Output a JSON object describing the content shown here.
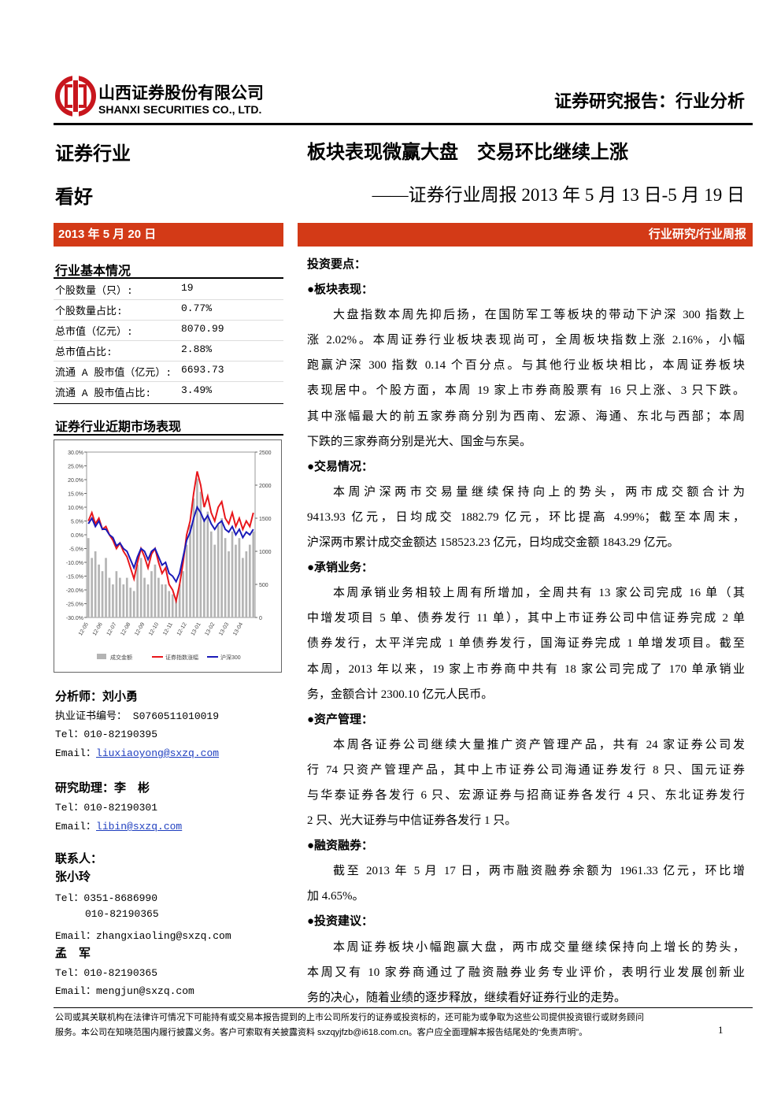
{
  "header": {
    "company_cn": "山西证券股份有限公司",
    "company_en": "SHANXI SECURITIES CO., LTD.",
    "report_type": "证券研究报告：行业分析"
  },
  "sidebar": {
    "industry": "证券行业",
    "rating": "看好",
    "date": "2013 年 5 月 20 日",
    "basics": {
      "title": "行业基本情况",
      "rows": [
        [
          "个股数量（只）:",
          "19"
        ],
        [
          "个股数量占比:",
          "0.77%"
        ],
        [
          "总市值（亿元）:",
          "8070.99"
        ],
        [
          "总市值占比:",
          "2.88%"
        ],
        [
          "流通 A 股市值（亿元）:",
          "6693.73"
        ],
        [
          "流通 A 股市值占比:",
          "3.49%"
        ]
      ]
    },
    "analyst": {
      "label": "分析师：刘小勇",
      "cert": "执业证书编号： S0760511010019",
      "tel": "Tel：010-82190395",
      "email_label": "Email：",
      "email": "liuxiaoyong@sxzq.com"
    },
    "assistant": {
      "label": "研究助理：李　彬",
      "tel": "Tel：010-82190301",
      "email_label": "Email：",
      "email": "libin@sxzq.com"
    },
    "contacts": {
      "label": "联系人：",
      "people": [
        {
          "name": "张小玲",
          "tel": "Tel：0351-8686990",
          "tel2": "010-82190365",
          "email": "Email：zhangxiaoling@sxzq.com"
        },
        {
          "name": "孟　军",
          "tel": "Tel：010-82190365",
          "email": "Email：mengjun@sxzq.com"
        }
      ]
    }
  },
  "chart_data": {
    "type": "combo",
    "title": "证券行业近期市场表现",
    "categories": [
      "12-05",
      null,
      null,
      null,
      "12-06",
      null,
      null,
      null,
      "12-07",
      null,
      null,
      null,
      "12-08",
      null,
      null,
      null,
      "12-09",
      null,
      null,
      null,
      "12-10",
      null,
      null,
      null,
      "12-11",
      null,
      null,
      null,
      "12-12",
      null,
      null,
      null,
      "13-01",
      null,
      null,
      null,
      "13-02",
      null,
      null,
      null,
      "13-03",
      null,
      null,
      null,
      "13-04",
      null,
      null,
      null
    ],
    "series": [
      {
        "name": "成交金额",
        "type": "bar",
        "axis": "y2",
        "color": "#b4b4b4",
        "values": [
          1200,
          900,
          1000,
          800,
          700,
          900,
          600,
          500,
          700,
          600,
          500,
          600,
          450,
          400,
          800,
          900,
          600,
          500,
          700,
          800,
          600,
          500,
          500,
          400,
          350,
          300,
          500,
          700,
          1100,
          1400,
          1800,
          2100,
          1900,
          1500,
          1600,
          1300,
          1100,
          1400,
          1500,
          1200,
          1000,
          1300,
          1100,
          1200,
          900,
          1000,
          1100,
          1300
        ]
      },
      {
        "name": "证券指数涨幅",
        "type": "line",
        "color": "#e8161b",
        "values": [
          5,
          8,
          4,
          6,
          2,
          3,
          0,
          -2,
          -5,
          -3,
          -6,
          -8,
          -12,
          -16,
          -10,
          -5,
          -8,
          -12,
          -7,
          -5,
          -10,
          -14,
          -12,
          -18,
          -20,
          -24,
          -18,
          -10,
          0,
          5,
          15,
          23,
          18,
          10,
          14,
          8,
          5,
          10,
          12,
          6,
          4,
          8,
          3,
          6,
          2,
          5,
          3,
          8
        ]
      },
      {
        "name": "沪深300",
        "type": "line",
        "color": "#1a1ab8",
        "values": [
          4,
          6,
          3,
          5,
          2,
          2,
          0,
          -1,
          -4,
          -3,
          -5,
          -6,
          -9,
          -12,
          -8,
          -5,
          -6,
          -9,
          -6,
          -5,
          -8,
          -11,
          -10,
          -14,
          -15,
          -17,
          -14,
          -8,
          -2,
          1,
          6,
          10,
          8,
          5,
          7,
          4,
          2,
          4,
          5,
          2,
          1,
          3,
          0,
          2,
          -1,
          1,
          0,
          2
        ]
      }
    ],
    "ylim": [
      -30,
      30
    ],
    "yticks": [
      {
        "value": 30,
        "label": "30.0%"
      },
      {
        "value": 25,
        "label": "25.0%"
      },
      {
        "value": 20,
        "label": "20.0%"
      },
      {
        "value": 15,
        "label": "15.0%"
      },
      {
        "value": 10,
        "label": "10.0%"
      },
      {
        "value": 5,
        "label": "5.0%"
      },
      {
        "value": 0,
        "label": "0.0%"
      },
      {
        "value": -5,
        "label": "-5.0%"
      },
      {
        "value": -10,
        "label": "-10.0%"
      },
      {
        "value": -15,
        "label": "-15.0%"
      },
      {
        "value": -20,
        "label": "-20.0%"
      },
      {
        "value": -25,
        "label": "-25.0%"
      },
      {
        "value": -30,
        "label": "-30.0%"
      }
    ],
    "y2lim": [
      0,
      2500
    ],
    "y2ticks": [
      0,
      500,
      1000,
      1500,
      2000,
      2500
    ]
  },
  "main": {
    "title": "板块表现微赢大盘　交易环比继续上涨",
    "subtitle": "——证券行业周报 2013 年 5 月 13 日-5 月 19 日",
    "category": "行业研究/行业周报",
    "key_points": "投资要点：",
    "sections": [
      {
        "heading": "●板块表现：",
        "lines": [
          "大盘指数本周先抑后扬，在国防军工等板块的带动下沪深 300 指数上",
          "涨 2.02%。本周证券行业板块表现尚可，全周板块指数上涨 2.16%，小幅",
          "跑赢沪深 300 指数 0.14 个百分点。与其他行业板块相比，本周证券板块",
          "表现居中。个股方面，本周 19 家上市券商股票有 16 只上涨、3 只下跌。",
          "其中涨幅最大的前五家券商分别为西南、宏源、海通、东北与西部；本周",
          "下跌的三家券商分别是光大、国金与东吴。"
        ]
      },
      {
        "heading": "●交易情况：",
        "lines": [
          "本周沪深两市交易量继续保持向上的势头，两市成交额合计为",
          "9413.93 亿元，日均成交 1882.79 亿元，环比提高 4.99%；截至本周末，",
          "沪深两市累计成交金额达 158523.23 亿元，日均成交金额 1843.29 亿元。"
        ]
      },
      {
        "heading": "●承销业务：",
        "lines": [
          "本周承销业务相较上周有所增加，全周共有 13 家公司完成 16 单（其",
          "中增发项目 5 单、债券发行 11 单），其中上市证券公司中信证券完成 2 单",
          "债券发行，太平洋完成 1 单债券发行，国海证券完成 1 单增发项目。截至",
          "本周，2013 年以来，19 家上市券商中共有 18 家公司完成了 170 单承销业",
          "务，金额合计 2300.10 亿元人民币。"
        ]
      },
      {
        "heading": "●资产管理：",
        "lines": [
          "本周各证券公司继续大量推广资产管理产品，共有 24 家证券公司发",
          "行 74 只资产管理产品，其中上市证券公司海通证券发行 8 只、国元证券",
          "与华泰证券各发行 6 只、宏源证券与招商证券各发行 4 只、东北证券发行",
          "2 只、光大证券与中信证券各发行 1 只。"
        ]
      },
      {
        "heading": "●融资融券：",
        "lines": [
          "截至 2013 年 5 月 17 日，两市融资融券余额为 1961.33 亿元，环比增",
          "加 4.65%。"
        ]
      },
      {
        "heading": "●投资建议：",
        "lines": [
          "本周证券板块小幅跑赢大盘，两市成交量继续保持向上增长的势头，",
          "本周又有 10 家券商通过了融资融券业务专业评价，表明行业发展创新业",
          "务的决心，随着业绩的逐步释放，继续看好证券行业的走势。"
        ]
      }
    ]
  },
  "footer": {
    "lines": [
      "公司或其关联机构在法律许可情况下可能持有或交易本报告提到的上市公司所发行的证券或投资标的，还可能为或争取为这些公司提供投资银行或财务顾问",
      "服务。本公司在知晓范围内履行披露义务。客户可索取有关披露资料 sxzqyjfzb@i618.com.cn。客户应全面理解本报告结尾处的“免责声明”。"
    ],
    "page": "1"
  }
}
